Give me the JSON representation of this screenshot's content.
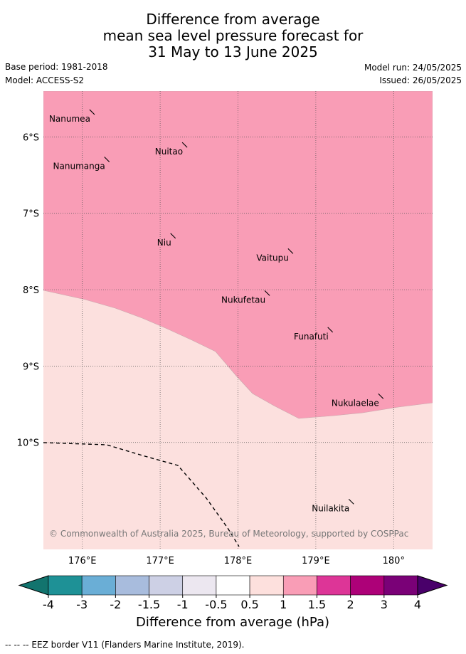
{
  "title": {
    "line1": "Difference from average",
    "line2": "mean sea level pressure forecast for",
    "line3": "31 May to 13 June 2025"
  },
  "meta": {
    "base_period": "Base period: 1981-2018",
    "model": "Model: ACCESS-S2",
    "model_run": "Model run: 24/05/2025",
    "issued": "Issued: 26/05/2025"
  },
  "map": {
    "lon_range": [
      175.5,
      180.5
    ],
    "lat_range": [
      -11.4,
      -5.4
    ],
    "lon_ticks": [
      "176°E",
      "177°E",
      "178°E",
      "179°E",
      "180°"
    ],
    "lon_tick_values": [
      176,
      177,
      178,
      179,
      180
    ],
    "lat_ticks": [
      "6°S",
      "7°S",
      "8°S",
      "9°S",
      "10°S"
    ],
    "lat_tick_values": [
      -6,
      -7,
      -8,
      -9,
      -10
    ],
    "high_anomaly_color": "#f99db6",
    "low_anomaly_color": "#fce0de",
    "islands": [
      {
        "name": "Nanumea",
        "lon": 176.13,
        "lat": -5.67
      },
      {
        "name": "Nuitao",
        "lon": 177.32,
        "lat": -6.1
      },
      {
        "name": "Nanumanga",
        "lon": 176.32,
        "lat": -6.29
      },
      {
        "name": "Niu",
        "lon": 177.17,
        "lat": -7.29
      },
      {
        "name": "Vaitupu",
        "lon": 178.68,
        "lat": -7.49
      },
      {
        "name": "Nukufetau",
        "lon": 178.38,
        "lat": -8.04
      },
      {
        "name": "Funafuti",
        "lon": 179.19,
        "lat": -8.52
      },
      {
        "name": "Nukulaelae",
        "lon": 179.84,
        "lat": -9.39
      },
      {
        "name": "Nuilakita",
        "lon": 179.46,
        "lat": -10.77
      }
    ],
    "copyright": "© Commonwealth of Australia 2025, Bureau of Meteorology, supported by COSPPac"
  },
  "colorbar": {
    "label": "Difference from average (hPa)",
    "ticks": [
      "-4",
      "-3",
      "-2",
      "-1.5",
      "-1",
      "-0.5",
      "0.5",
      "1",
      "1.5",
      "2",
      "3",
      "4"
    ],
    "colors": [
      "#1e9196",
      "#6aaed6",
      "#a8bcdd",
      "#cdd0e5",
      "#ece7f0",
      "#ffffff",
      "#fde0dd",
      "#f99db6",
      "#dd3597",
      "#ad0178",
      "#7a0177"
    ],
    "under_color": "#12746e",
    "over_color": "#49006a"
  },
  "footnote": "--  --  -- EEZ border V11 (Flanders Marine Institute, 2019)."
}
